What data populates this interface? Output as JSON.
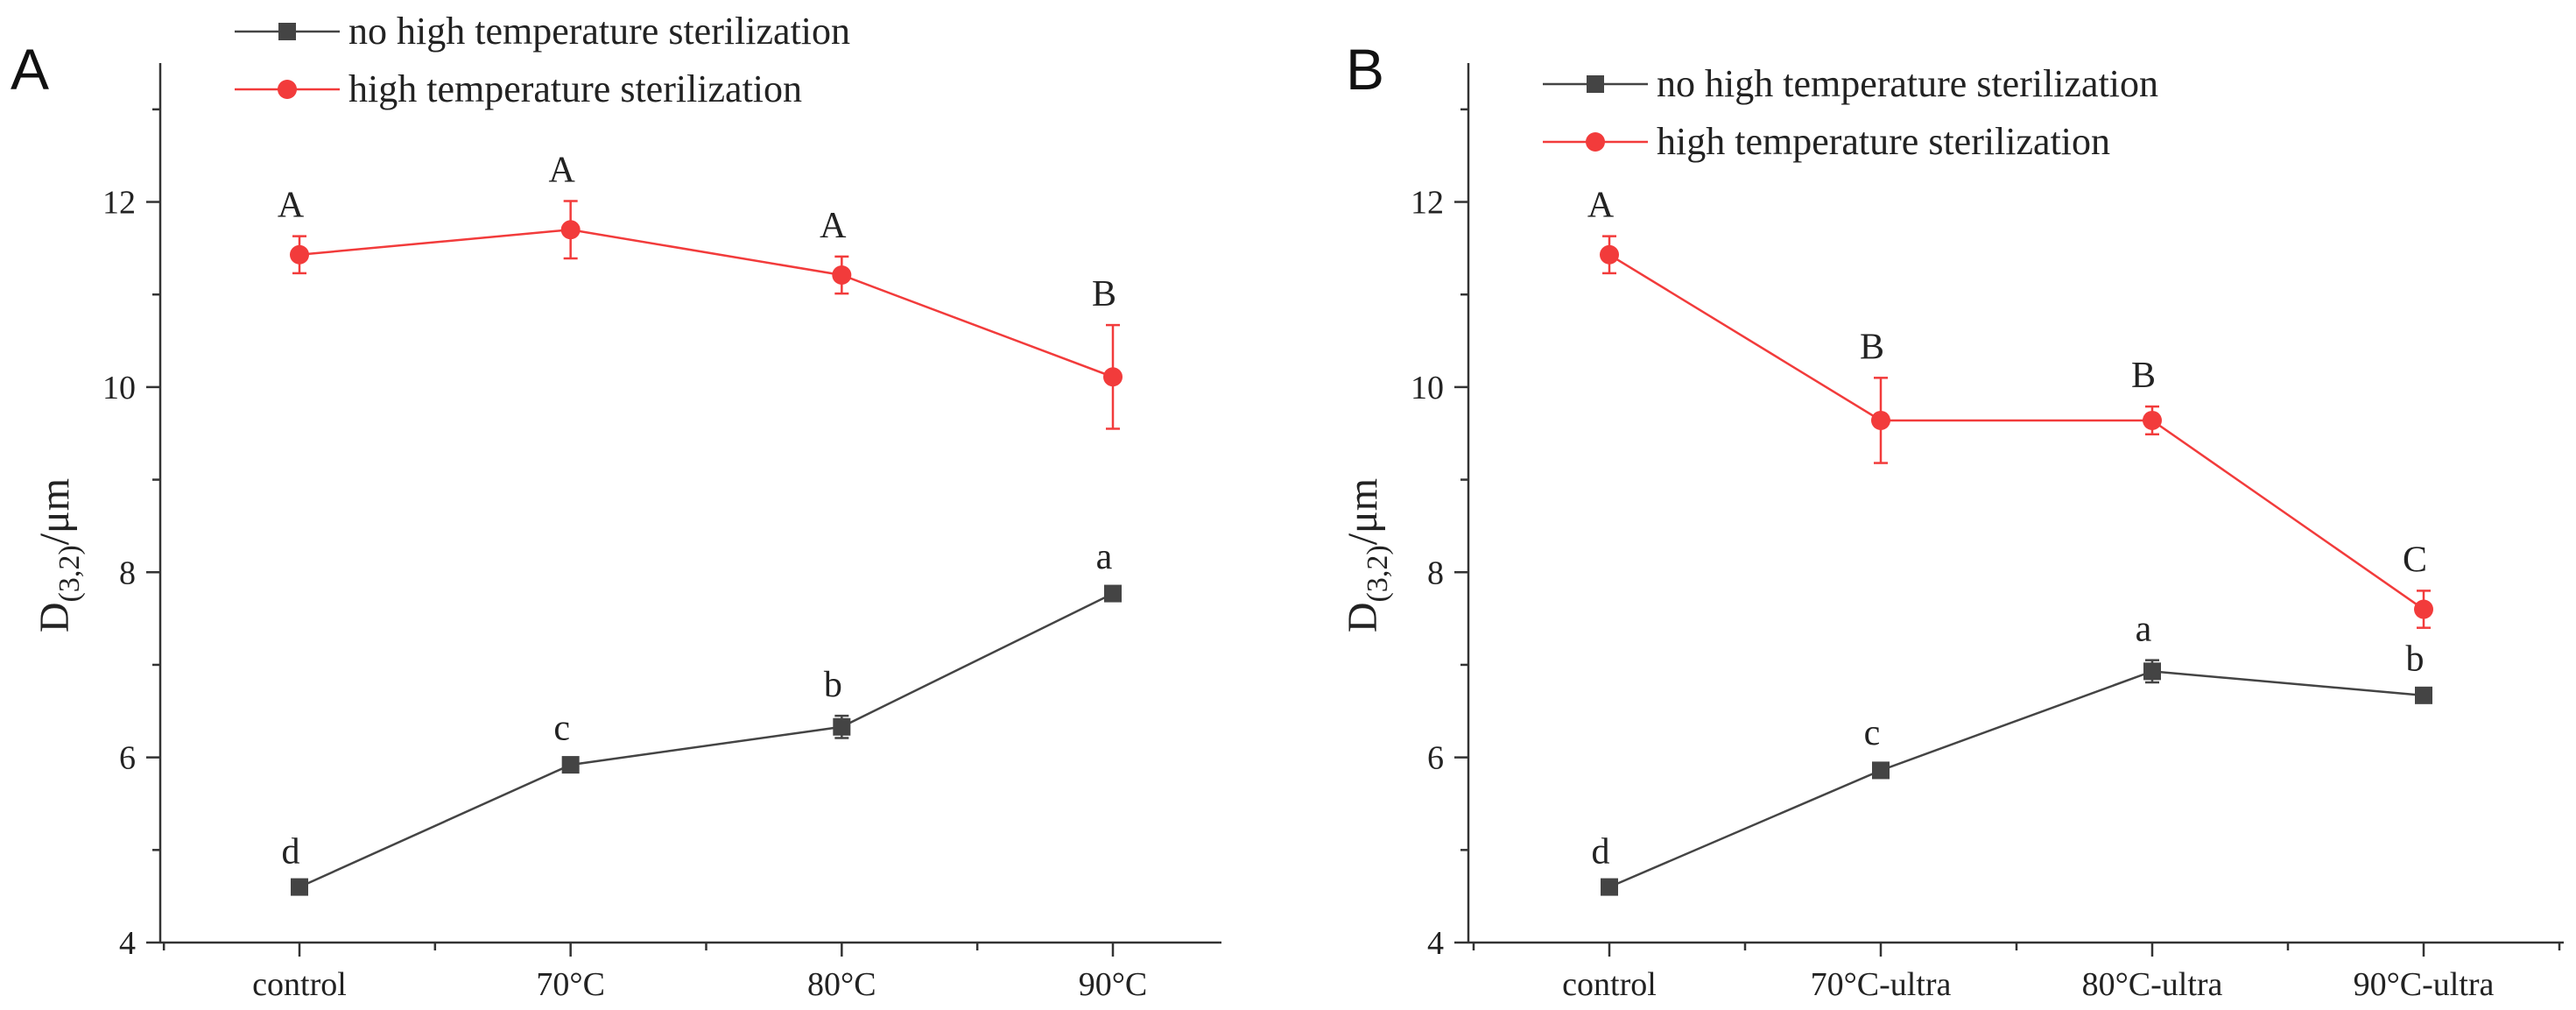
{
  "colors": {
    "no_sterilization": "#444444",
    "sterilization": "#F23B3B",
    "axis": "#333333"
  },
  "chart_data": [
    {
      "type": "line",
      "panel_label": "A",
      "title": "",
      "xlabel": "",
      "ylabel": "D(3,2)/μm",
      "ylabel_main": "D",
      "ylabel_sub": "(3,2)",
      "ylabel_unit": "/μm",
      "ylim": [
        4,
        13.5
      ],
      "yticks": [
        4,
        6,
        8,
        10,
        12
      ],
      "categories": [
        "control",
        "70°C",
        "80°C",
        "90°C"
      ],
      "legend_position": "top-left",
      "series": [
        {
          "name": "no high temperature sterilization",
          "marker": "square",
          "color": "#444444",
          "values": [
            4.6,
            5.92,
            6.33,
            7.77
          ],
          "errors": [
            0.05,
            0.06,
            0.12,
            0.06
          ],
          "labels": [
            "d",
            "c",
            "b",
            "a"
          ]
        },
        {
          "name": "high temperature sterilization",
          "marker": "circle",
          "color": "#F23B3B",
          "values": [
            11.43,
            11.7,
            11.21,
            10.11
          ],
          "errors": [
            0.2,
            0.31,
            0.2,
            0.56
          ],
          "labels": [
            "A",
            "A",
            "A",
            "B"
          ]
        }
      ]
    },
    {
      "type": "line",
      "panel_label": "B",
      "title": "",
      "xlabel": "",
      "ylabel": "D(3,2)/μm",
      "ylabel_main": "D",
      "ylabel_sub": "(3,2)",
      "ylabel_unit": "/μm",
      "ylim": [
        4,
        13.5
      ],
      "yticks": [
        4,
        6,
        8,
        10,
        12
      ],
      "categories": [
        "control",
        "70°C-ultra",
        "80°C-ultra",
        "90°C-ultra"
      ],
      "legend_position": "top-left",
      "series": [
        {
          "name": "no high temperature sterilization",
          "marker": "square",
          "color": "#444444",
          "values": [
            4.6,
            5.86,
            6.93,
            6.67
          ],
          "errors": [
            0.05,
            0.07,
            0.12,
            0.06
          ],
          "labels": [
            "d",
            "c",
            "a",
            "b"
          ]
        },
        {
          "name": "high temperature sterilization",
          "marker": "circle",
          "color": "#F23B3B",
          "values": [
            11.43,
            9.64,
            9.64,
            7.6
          ],
          "errors": [
            0.2,
            0.46,
            0.15,
            0.2
          ],
          "labels": [
            "A",
            "B",
            "B",
            "C"
          ]
        }
      ]
    }
  ]
}
